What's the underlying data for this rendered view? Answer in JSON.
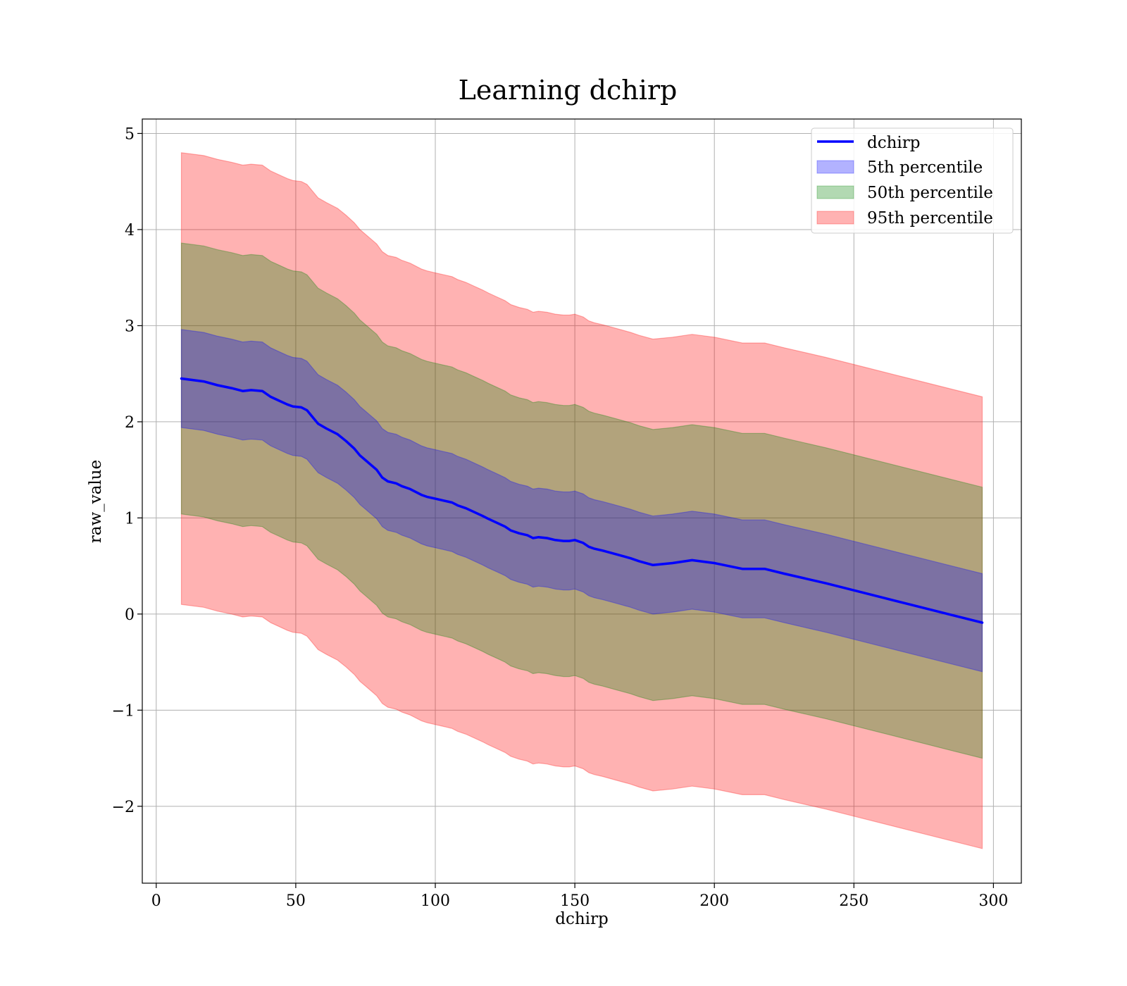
{
  "chart_data": {
    "type": "line",
    "title": "Learning dchirp",
    "xlabel": "dchirp",
    "ylabel": "raw_value",
    "xlim": [
      -5,
      310
    ],
    "ylim": [
      -2.8,
      5.15
    ],
    "xticks": [
      0,
      50,
      100,
      150,
      200,
      250,
      300
    ],
    "yticks": [
      -2,
      -1,
      0,
      1,
      2,
      3,
      4,
      5
    ],
    "ytick_labels": [
      "−2",
      "−1",
      "0",
      "1",
      "2",
      "3",
      "4",
      "5"
    ],
    "grid": true,
    "legend_position": "top-right",
    "x": [
      9,
      17,
      22,
      27,
      31,
      34,
      38,
      41,
      44,
      47,
      49,
      52,
      54,
      56,
      58,
      61,
      65,
      68,
      71,
      73,
      75,
      77,
      79,
      81,
      83,
      86,
      88,
      91,
      95,
      97,
      100,
      103,
      106,
      108,
      111,
      114,
      117,
      119,
      122,
      125,
      127,
      130,
      133,
      135,
      137,
      140,
      143,
      146,
      148,
      150,
      153,
      155,
      157,
      160,
      165,
      170,
      173,
      178,
      185,
      192,
      200,
      210,
      218,
      225,
      240,
      255,
      270,
      285,
      296
    ],
    "series": [
      {
        "name": "dchirp",
        "color": "#0000ff",
        "values": [
          2.45,
          2.42,
          2.38,
          2.35,
          2.32,
          2.33,
          2.32,
          2.26,
          2.22,
          2.18,
          2.16,
          2.15,
          2.12,
          2.05,
          1.98,
          1.93,
          1.87,
          1.8,
          1.72,
          1.65,
          1.6,
          1.55,
          1.5,
          1.42,
          1.38,
          1.36,
          1.33,
          1.3,
          1.24,
          1.22,
          1.2,
          1.18,
          1.16,
          1.13,
          1.1,
          1.06,
          1.02,
          0.99,
          0.95,
          0.91,
          0.87,
          0.84,
          0.82,
          0.79,
          0.8,
          0.79,
          0.77,
          0.76,
          0.76,
          0.77,
          0.74,
          0.7,
          0.68,
          0.66,
          0.62,
          0.58,
          0.55,
          0.51,
          0.53,
          0.56,
          0.53,
          0.47,
          0.47,
          0.42,
          0.32,
          0.21,
          0.1,
          -0.01,
          -0.09
        ]
      },
      {
        "name": "5th percentile",
        "color": "#0000ff",
        "band_halfwidth": 0.51
      },
      {
        "name": "50th percentile",
        "color": "#008000",
        "band_halfwidth": 1.41
      },
      {
        "name": "95th percentile",
        "color": "#ff0000",
        "band_halfwidth": 2.35
      }
    ]
  }
}
